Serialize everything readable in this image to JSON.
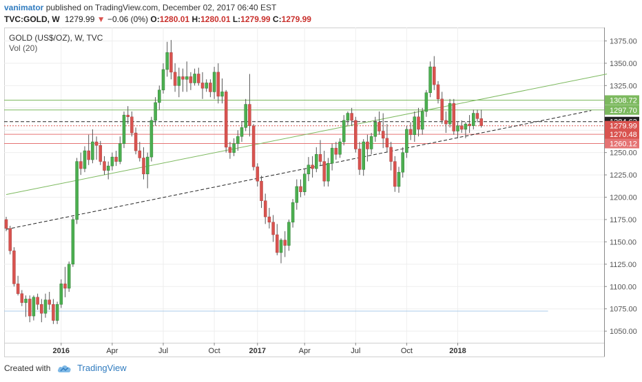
{
  "header": {
    "author": "vanimator",
    "published_text": "published on TradingView.com, December 02, 2017 06:40 EST",
    "symbol": "TVC:GOLD, W",
    "last": "1279.99",
    "change": "−0.06 (0%)",
    "o_label": "O:",
    "o": "1280.01",
    "h_label": "H:",
    "h": "1280.01",
    "l_label": "L:",
    "l": "1279.99",
    "c_label": "C:",
    "c": "1279.99"
  },
  "legend": {
    "title": "GOLD (US$/OZ), W, TVC",
    "indicator": "Vol (20)"
  },
  "footer": {
    "created_with": "Created with",
    "brand": "TradingView"
  },
  "colors": {
    "up": "#4caf50",
    "down": "#d9534f",
    "wick": "#555555",
    "green_line": "#7cb95e",
    "red_line": "#e57373",
    "axis": "#555555"
  },
  "chart_data": {
    "type": "candlestick",
    "ylim": [
      1037,
      1390
    ],
    "x_tick_labels": [
      "2016",
      "Apr",
      "Jul",
      "Oct",
      "2017",
      "Apr",
      "Jul",
      "Oct",
      "2018"
    ],
    "y_ticks": [
      1050,
      1075,
      1100,
      1125,
      1150,
      1175,
      1200,
      1225,
      1250,
      1275,
      1300,
      1325,
      1350,
      1375
    ],
    "price_labels": [
      {
        "label": "1308.72",
        "value": 1308.72,
        "color": "#7cb95e"
      },
      {
        "label": "1297.70",
        "value": 1297.7,
        "color": "#7cb95e"
      },
      {
        "label": "1284.62",
        "value": 1284.62,
        "color": "#222222"
      },
      {
        "label": "1279.99",
        "value": 1279.99,
        "color": "#d9534f"
      },
      {
        "label": "1270.48",
        "value": 1270.48,
        "color": "#d9534f"
      },
      {
        "label": "1260.12",
        "value": 1260.12,
        "color": "#e57373"
      }
    ],
    "horizontal_levels": [
      {
        "value": 1308.72,
        "style": "solid",
        "color": "#7cb95e"
      },
      {
        "value": 1297.7,
        "style": "solid",
        "color": "#7cb95e"
      },
      {
        "value": 1284.62,
        "style": "dashed",
        "color": "#222222"
      },
      {
        "value": 1279.99,
        "style": "dotted",
        "color": "#d9534f"
      },
      {
        "value": 1270.48,
        "style": "solid",
        "color": "#e57373"
      },
      {
        "value": 1260.12,
        "style": "solid",
        "color": "#e57373"
      },
      {
        "value": 1072.5,
        "style": "solid",
        "color": "#a9cbe8"
      }
    ],
    "trendlines": [
      {
        "name": "green-trend",
        "from": [
          0,
          1203
        ],
        "to": [
          153,
          1338
        ],
        "style": "solid",
        "color": "#7cb95e"
      },
      {
        "name": "black-trend",
        "from": [
          0,
          1164
        ],
        "to": [
          149,
          1297
        ],
        "style": "dashed",
        "color": "#222222"
      }
    ],
    "candles": [
      [
        1175,
        1178,
        1162,
        1165
      ],
      [
        1165,
        1168,
        1136,
        1140
      ],
      [
        1140,
        1144,
        1100,
        1103
      ],
      [
        1103,
        1112,
        1090,
        1092
      ],
      [
        1092,
        1096,
        1078,
        1082
      ],
      [
        1082,
        1090,
        1066,
        1086
      ],
      [
        1086,
        1090,
        1060,
        1067
      ],
      [
        1067,
        1090,
        1062,
        1088
      ],
      [
        1088,
        1092,
        1074,
        1080
      ],
      [
        1080,
        1086,
        1060,
        1070
      ],
      [
        1070,
        1092,
        1065,
        1085
      ],
      [
        1085,
        1094,
        1074,
        1080
      ],
      [
        1080,
        1086,
        1058,
        1062
      ],
      [
        1062,
        1083,
        1058,
        1080
      ],
      [
        1080,
        1108,
        1076,
        1103
      ],
      [
        1103,
        1122,
        1088,
        1098
      ],
      [
        1098,
        1128,
        1094,
        1125
      ],
      [
        1125,
        1178,
        1122,
        1175
      ],
      [
        1175,
        1244,
        1170,
        1240
      ],
      [
        1240,
        1250,
        1225,
        1232
      ],
      [
        1232,
        1257,
        1228,
        1252
      ],
      [
        1252,
        1270,
        1236,
        1242
      ],
      [
        1242,
        1276,
        1238,
        1262
      ],
      [
        1262,
        1268,
        1242,
        1258
      ],
      [
        1258,
        1263,
        1236,
        1240
      ],
      [
        1240,
        1246,
        1225,
        1230
      ],
      [
        1230,
        1240,
        1220,
        1235
      ],
      [
        1235,
        1250,
        1230,
        1245
      ],
      [
        1245,
        1252,
        1235,
        1240
      ],
      [
        1240,
        1268,
        1237,
        1260
      ],
      [
        1260,
        1296,
        1255,
        1292
      ],
      [
        1292,
        1302,
        1282,
        1290
      ],
      [
        1290,
        1296,
        1268,
        1272
      ],
      [
        1272,
        1278,
        1248,
        1252
      ],
      [
        1252,
        1262,
        1240,
        1244
      ],
      [
        1244,
        1256,
        1220,
        1226
      ],
      [
        1226,
        1250,
        1210,
        1245
      ],
      [
        1245,
        1290,
        1240,
        1286
      ],
      [
        1286,
        1312,
        1280,
        1306
      ],
      [
        1306,
        1325,
        1298,
        1320
      ],
      [
        1320,
        1350,
        1316,
        1343
      ],
      [
        1343,
        1374,
        1335,
        1362
      ],
      [
        1362,
        1376,
        1332,
        1340
      ],
      [
        1340,
        1350,
        1318,
        1325
      ],
      [
        1325,
        1345,
        1312,
        1335
      ],
      [
        1335,
        1344,
        1318,
        1332
      ],
      [
        1332,
        1352,
        1318,
        1335
      ],
      [
        1335,
        1340,
        1320,
        1328
      ],
      [
        1328,
        1344,
        1325,
        1338
      ],
      [
        1338,
        1345,
        1325,
        1328
      ],
      [
        1328,
        1340,
        1310,
        1322
      ],
      [
        1322,
        1332,
        1318,
        1328
      ],
      [
        1328,
        1332,
        1312,
        1318
      ],
      [
        1318,
        1346,
        1310,
        1340
      ],
      [
        1340,
        1350,
        1305,
        1313
      ],
      [
        1313,
        1333,
        1305,
        1318
      ],
      [
        1318,
        1320,
        1250,
        1256
      ],
      [
        1256,
        1262,
        1243,
        1250
      ],
      [
        1250,
        1266,
        1246,
        1260
      ],
      [
        1260,
        1275,
        1252,
        1268
      ],
      [
        1268,
        1285,
        1262,
        1278
      ],
      [
        1278,
        1310,
        1274,
        1304
      ],
      [
        1304,
        1338,
        1268,
        1280
      ],
      [
        1280,
        1282,
        1230,
        1234
      ],
      [
        1234,
        1238,
        1212,
        1218
      ],
      [
        1218,
        1224,
        1188,
        1196
      ],
      [
        1196,
        1204,
        1170,
        1178
      ],
      [
        1178,
        1188,
        1165,
        1172
      ],
      [
        1172,
        1180,
        1150,
        1158
      ],
      [
        1158,
        1170,
        1135,
        1138
      ],
      [
        1138,
        1154,
        1126,
        1152
      ],
      [
        1152,
        1162,
        1133,
        1146
      ],
      [
        1146,
        1175,
        1140,
        1172
      ],
      [
        1172,
        1198,
        1166,
        1194
      ],
      [
        1194,
        1220,
        1186,
        1212
      ],
      [
        1212,
        1220,
        1200,
        1206
      ],
      [
        1206,
        1232,
        1202,
        1226
      ],
      [
        1226,
        1245,
        1218,
        1236
      ],
      [
        1236,
        1246,
        1222,
        1232
      ],
      [
        1232,
        1256,
        1228,
        1248
      ],
      [
        1248,
        1264,
        1235,
        1240
      ],
      [
        1240,
        1252,
        1212,
        1218
      ],
      [
        1218,
        1244,
        1212,
        1238
      ],
      [
        1238,
        1260,
        1230,
        1255
      ],
      [
        1255,
        1262,
        1242,
        1248
      ],
      [
        1248,
        1266,
        1244,
        1262
      ],
      [
        1262,
        1292,
        1258,
        1286
      ],
      [
        1286,
        1296,
        1280,
        1294
      ],
      [
        1294,
        1300,
        1280,
        1286
      ],
      [
        1286,
        1290,
        1250,
        1254
      ],
      [
        1254,
        1262,
        1225,
        1231
      ],
      [
        1231,
        1265,
        1224,
        1262
      ],
      [
        1262,
        1270,
        1240,
        1254
      ],
      [
        1254,
        1272,
        1248,
        1268
      ],
      [
        1268,
        1290,
        1262,
        1284
      ],
      [
        1284,
        1296,
        1270,
        1274
      ],
      [
        1274,
        1294,
        1255,
        1266
      ],
      [
        1266,
        1282,
        1250,
        1256
      ],
      [
        1256,
        1262,
        1230,
        1240
      ],
      [
        1240,
        1246,
        1206,
        1212
      ],
      [
        1212,
        1234,
        1205,
        1228
      ],
      [
        1228,
        1256,
        1222,
        1250
      ],
      [
        1250,
        1280,
        1244,
        1276
      ],
      [
        1276,
        1284,
        1264,
        1270
      ],
      [
        1270,
        1296,
        1262,
        1290
      ],
      [
        1290,
        1300,
        1268,
        1276
      ],
      [
        1276,
        1300,
        1270,
        1296
      ],
      [
        1296,
        1320,
        1290,
        1317
      ],
      [
        1317,
        1352,
        1312,
        1346
      ],
      [
        1346,
        1358,
        1320,
        1326
      ],
      [
        1326,
        1330,
        1305,
        1310
      ],
      [
        1310,
        1318,
        1282,
        1286
      ],
      [
        1286,
        1296,
        1272,
        1282
      ],
      [
        1282,
        1310,
        1278,
        1305
      ],
      [
        1305,
        1310,
        1270,
        1274
      ],
      [
        1274,
        1284,
        1266,
        1280
      ],
      [
        1280,
        1286,
        1272,
        1276
      ],
      [
        1276,
        1284,
        1266,
        1282
      ],
      [
        1282,
        1292,
        1272,
        1280
      ],
      [
        1280,
        1298,
        1276,
        1294
      ],
      [
        1294,
        1298,
        1284,
        1288
      ],
      [
        1288,
        1298,
        1278,
        1280
      ]
    ]
  }
}
